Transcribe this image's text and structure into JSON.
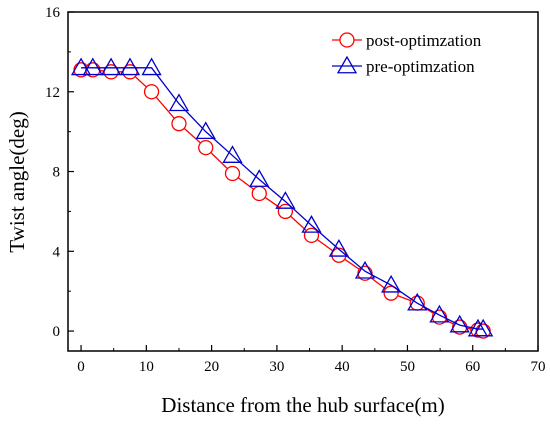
{
  "chart_data": {
    "type": "line",
    "title": "",
    "xlabel": "Distance from the hub surface(m)",
    "ylabel": "Twist angle(deg)",
    "xlim": [
      -2,
      70
    ],
    "ylim": [
      -1,
      16
    ],
    "xticks": [
      0,
      10,
      20,
      30,
      40,
      50,
      60,
      70
    ],
    "yticks": [
      0,
      4,
      8,
      12,
      16
    ],
    "legend_position": "top-right",
    "series": [
      {
        "name": "post-optimzation",
        "color": "#ff0000",
        "marker": "circle",
        "x": [
          0,
          1.8,
          4.6,
          7.5,
          10.8,
          15.0,
          19.1,
          23.2,
          27.3,
          31.3,
          35.3,
          39.5,
          43.5,
          47.5,
          51.5,
          54.9,
          58.0,
          60.8,
          61.6
        ],
        "y": [
          13.1,
          13.1,
          13.0,
          13.0,
          12.0,
          10.4,
          9.2,
          7.9,
          6.9,
          6.0,
          4.8,
          3.8,
          2.9,
          1.9,
          1.4,
          0.7,
          0.2,
          0.05,
          0.0
        ]
      },
      {
        "name": "pre-optimzation",
        "color": "#0000cc",
        "marker": "triangle",
        "x": [
          0,
          1.8,
          4.6,
          7.5,
          10.8,
          15.0,
          19.1,
          23.2,
          27.3,
          31.3,
          35.3,
          39.5,
          43.5,
          47.5,
          51.5,
          54.9,
          58.0,
          60.8,
          61.6
        ],
        "y": [
          13.2,
          13.2,
          13.2,
          13.2,
          13.2,
          11.4,
          10.0,
          8.8,
          7.6,
          6.5,
          5.3,
          4.1,
          3.0,
          2.3,
          1.4,
          0.8,
          0.3,
          0.1,
          0.1
        ]
      }
    ]
  }
}
